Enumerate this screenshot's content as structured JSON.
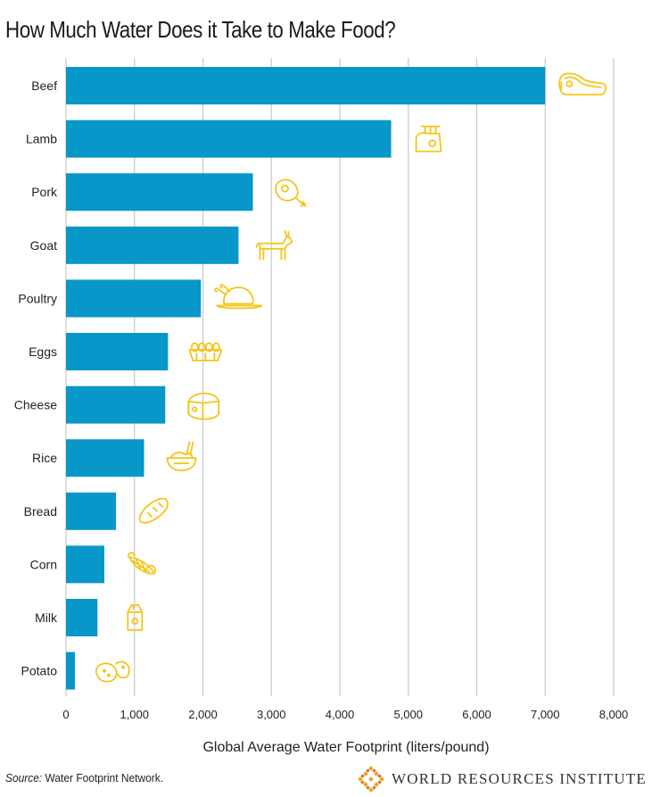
{
  "colors": {
    "bar": "#0797c8",
    "icon": "#f5c518",
    "grid": "#c9c9c9",
    "text": "#222222"
  },
  "chart_data": {
    "type": "bar",
    "orientation": "horizontal",
    "title": "How Much Water Does it Take to Make Food?",
    "xlabel": "Global Average Water Footprint (liters/pound)",
    "ylabel": "",
    "xlim": [
      0,
      8000
    ],
    "xticks": [
      0,
      1000,
      2000,
      3000,
      4000,
      5000,
      6000,
      7000,
      8000
    ],
    "xtick_labels": [
      "0",
      "1,000",
      "2,000",
      "3,000",
      "4,000",
      "5,000",
      "6,000",
      "7,000",
      "8,000"
    ],
    "grid": "vertical",
    "categories": [
      "Beef",
      "Lamb",
      "Pork",
      "Goat",
      "Poultry",
      "Eggs",
      "Cheese",
      "Rice",
      "Bread",
      "Corn",
      "Milk",
      "Potato"
    ],
    "values": [
      7000,
      4750,
      2730,
      2520,
      1970,
      1490,
      1450,
      1140,
      730,
      560,
      460,
      130
    ],
    "icons": [
      "steak-icon",
      "lamb-rack-icon",
      "ham-icon",
      "goat-icon",
      "roast-chicken-icon",
      "egg-carton-icon",
      "cheese-icon",
      "rice-bowl-icon",
      "bread-icon",
      "corn-icon",
      "milk-carton-icon",
      "potato-icon"
    ]
  },
  "footer": {
    "source_label": "Source:",
    "source_text": " Water Footprint Network.",
    "brand": "WORLD RESOURCES INSTITUTE"
  }
}
